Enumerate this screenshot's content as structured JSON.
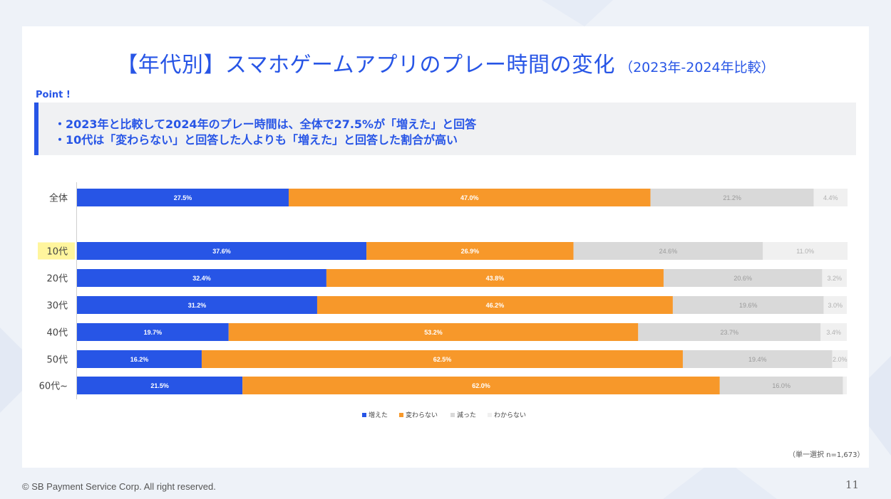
{
  "title": {
    "main": "【年代別】スマホゲームアプリのプレー時間の変化",
    "sub": "（2023年-2024年比較）"
  },
  "point": {
    "label": "Point !",
    "lines": [
      "・2023年と比較して2024年のプレー時間は、全体で27.5%が「増えた」と回答",
      "・10代は「変わらない」と回答した人よりも「増えた」と回答した割合が高い"
    ]
  },
  "colors": {
    "accent": "#2755e6",
    "increased": "#2755e6",
    "unchanged": "#f7982a",
    "decreased": "#d9d9d9",
    "unknown": "#f0f0f0",
    "highlight": "#fff59d"
  },
  "chart_data": {
    "type": "bar",
    "orientation": "horizontal",
    "stacked": true,
    "categories": [
      "全体",
      "10代",
      "20代",
      "30代",
      "40代",
      "50代",
      "60代~"
    ],
    "highlighted_category": "10代",
    "series": [
      {
        "name": "増えた",
        "values": [
          27.5,
          37.6,
          32.4,
          31.2,
          19.7,
          16.2,
          21.5
        ]
      },
      {
        "name": "変わらない",
        "values": [
          47.0,
          26.9,
          43.8,
          46.2,
          53.2,
          62.5,
          62.0
        ]
      },
      {
        "name": "減った",
        "values": [
          21.2,
          24.6,
          20.6,
          19.6,
          23.7,
          19.4,
          16.0
        ]
      },
      {
        "name": "わからない",
        "values": [
          4.4,
          11.0,
          3.2,
          3.0,
          3.4,
          2.0,
          null
        ]
      }
    ],
    "value_suffix": "%",
    "xlim": [
      0,
      100
    ],
    "legend_position": "bottom-center"
  },
  "note": "（単一選択 n=1,673）",
  "footer": "© SB Payment Service Corp. All right reserved.",
  "page_number": "11"
}
